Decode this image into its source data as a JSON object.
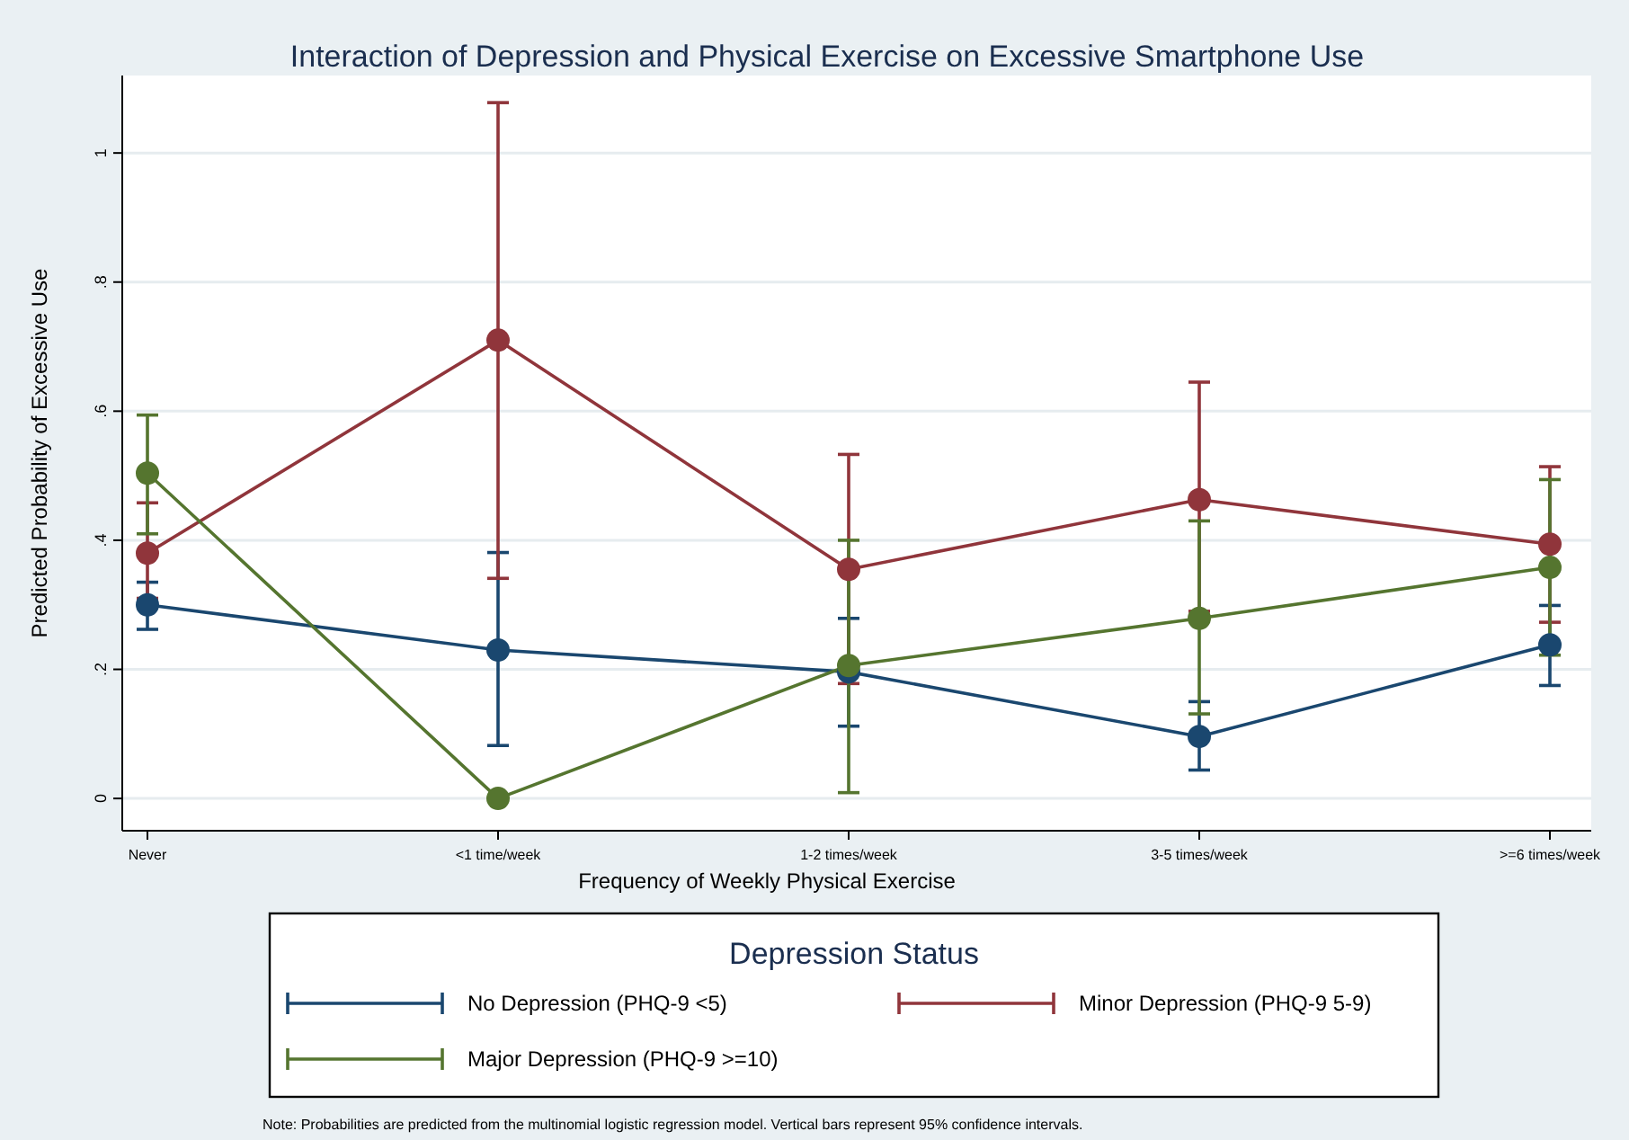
{
  "chart_data": {
    "type": "line",
    "title": "Interaction of Depression and Physical Exercise on Excessive Smartphone Use",
    "xlabel": "Frequency of Weekly Physical Exercise",
    "ylabel": "Predicted Probability of Excessive Use",
    "legend_title": "Depression Status",
    "categories": [
      "Never",
      "<1 time/week",
      "1-2 times/week",
      "3-5 times/week",
      ">=6 times/week"
    ],
    "series": [
      {
        "name": "No Depression (PHQ-9 <5)",
        "color": "#1a476f",
        "values": [
          0.3,
          0.23,
          0.196,
          0.096,
          0.238
        ],
        "errors": [
          [
            0.262,
            0.335
          ],
          [
            0.082,
            0.381
          ],
          [
            0.112,
            0.279
          ],
          [
            0.044,
            0.15
          ],
          [
            0.175,
            0.299
          ]
        ]
      },
      {
        "name": "Minor Depression (PHQ-9 5-9)",
        "color": "#90353b",
        "values": [
          0.38,
          0.71,
          0.355,
          0.463,
          0.394
        ],
        "errors": [
          [
            0.31,
            0.458
          ],
          [
            0.341,
            1.078
          ],
          [
            0.178,
            0.533
          ],
          [
            0.29,
            0.645
          ],
          [
            0.273,
            0.514
          ]
        ]
      },
      {
        "name": "Major Depression (PHQ-9 >=10)",
        "color": "#55752f",
        "values": [
          0.504,
          0.0,
          0.206,
          0.279,
          0.358
        ],
        "errors": [
          [
            0.41,
            0.594
          ],
          null,
          [
            0.009,
            0.4
          ],
          [
            0.131,
            0.43
          ],
          [
            0.222,
            0.494
          ]
        ]
      }
    ],
    "ylim": [
      -0.05,
      1.12
    ],
    "yticks": [
      0,
      {
        "value": 0.2,
        "label": ".2"
      },
      {
        "value": 0.4,
        "label": ".4"
      },
      {
        "value": 0.6,
        "label": ".6"
      },
      {
        "value": 0.8,
        "label": ".8"
      },
      1
    ],
    "grid": "y",
    "legend": "bottom",
    "marker": "circle",
    "line_style": "solid",
    "annotations": [
      "Note: Probabilities are predicted from the multinomial logistic regression model. Vertical bars represent 95% confidence intervals."
    ]
  }
}
